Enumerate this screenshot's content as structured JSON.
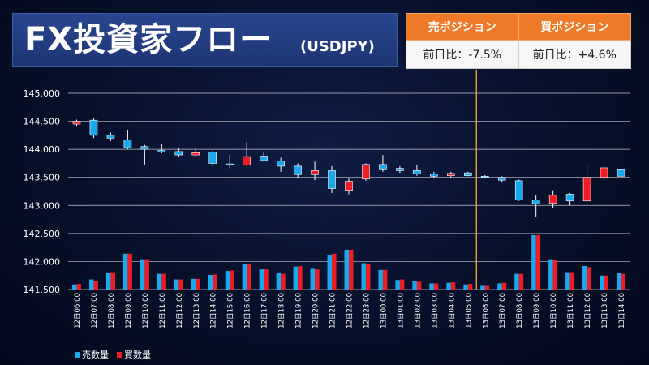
{
  "title": {
    "main": "FX投資家フロー",
    "sub": "(USDJPY)"
  },
  "positions": {
    "sell_header": "売ポジション",
    "buy_header": "買ポジション",
    "sell_change": "前日比：-7.5%",
    "buy_change": "前日比：+4.6%"
  },
  "colors": {
    "sell": "#1aa9ef",
    "buy": "#ee1c24",
    "grid": "#ffffff",
    "marker": "#e8a33c",
    "header": "#ef7b2a"
  },
  "chart_data": {
    "type": "candlestick+bar",
    "title": "",
    "xlabel": "",
    "ylabel": "",
    "ylim": [
      141.5,
      145.0
    ],
    "yticks": [
      "141.500",
      "142.000",
      "142.500",
      "143.000",
      "143.500",
      "144.000",
      "144.500",
      "145.000"
    ],
    "grid": true,
    "legend_position": "bottom-left",
    "legend": [
      "売数量",
      "買数量"
    ],
    "marker_after_category": "13日05:00",
    "categories": [
      "12日06:00",
      "12日07:00",
      "12日08:00",
      "12日09:00",
      "12日10:00",
      "12日11:00",
      "12日12:00",
      "12日13:00",
      "12日14:00",
      "12日15:00",
      "12日16:00",
      "12日17:00",
      "12日18:00",
      "12日19:00",
      "12日20:00",
      "12日21:00",
      "12日22:00",
      "12日23:00",
      "13日00:00",
      "13日01:00",
      "13日02:00",
      "13日03:00",
      "13日04:00",
      "13日05:00",
      "13日06:00",
      "13日07:00",
      "13日08:00",
      "13日09:00",
      "13日10:00",
      "13日11:00",
      "13日12:00",
      "13日13:00",
      "13日14:00"
    ],
    "candles": [
      {
        "o": 144.45,
        "h": 144.53,
        "l": 144.42,
        "c": 144.5
      },
      {
        "o": 144.52,
        "h": 144.55,
        "l": 144.2,
        "c": 144.25
      },
      {
        "o": 144.25,
        "h": 144.3,
        "l": 144.15,
        "c": 144.2
      },
      {
        "o": 144.17,
        "h": 144.35,
        "l": 144.0,
        "c": 144.03
      },
      {
        "o": 144.05,
        "h": 144.08,
        "l": 143.72,
        "c": 144.0
      },
      {
        "o": 143.98,
        "h": 144.1,
        "l": 143.93,
        "c": 143.95
      },
      {
        "o": 143.96,
        "h": 144.03,
        "l": 143.86,
        "c": 143.9
      },
      {
        "o": 143.9,
        "h": 144.02,
        "l": 143.87,
        "c": 143.94
      },
      {
        "o": 143.95,
        "h": 143.98,
        "l": 143.7,
        "c": 143.75
      },
      {
        "o": 143.74,
        "h": 143.9,
        "l": 143.66,
        "c": 143.72
      },
      {
        "o": 143.72,
        "h": 144.13,
        "l": 143.7,
        "c": 143.87
      },
      {
        "o": 143.88,
        "h": 143.94,
        "l": 143.78,
        "c": 143.8
      },
      {
        "o": 143.79,
        "h": 143.85,
        "l": 143.6,
        "c": 143.7
      },
      {
        "o": 143.7,
        "h": 143.75,
        "l": 143.48,
        "c": 143.55
      },
      {
        "o": 143.55,
        "h": 143.78,
        "l": 143.45,
        "c": 143.62
      },
      {
        "o": 143.62,
        "h": 143.7,
        "l": 143.22,
        "c": 143.3
      },
      {
        "o": 143.27,
        "h": 143.48,
        "l": 143.2,
        "c": 143.43
      },
      {
        "o": 143.47,
        "h": 143.75,
        "l": 143.44,
        "c": 143.73
      },
      {
        "o": 143.73,
        "h": 143.9,
        "l": 143.6,
        "c": 143.65
      },
      {
        "o": 143.66,
        "h": 143.7,
        "l": 143.58,
        "c": 143.62
      },
      {
        "o": 143.62,
        "h": 143.72,
        "l": 143.53,
        "c": 143.56
      },
      {
        "o": 143.56,
        "h": 143.6,
        "l": 143.49,
        "c": 143.52
      },
      {
        "o": 143.53,
        "h": 143.6,
        "l": 143.5,
        "c": 143.57
      },
      {
        "o": 143.58,
        "h": 143.6,
        "l": 143.52,
        "c": 143.53
      },
      {
        "o": 143.52,
        "h": 143.54,
        "l": 143.48,
        "c": 143.5
      },
      {
        "o": 143.5,
        "h": 143.52,
        "l": 143.42,
        "c": 143.45
      },
      {
        "o": 143.44,
        "h": 143.46,
        "l": 143.08,
        "c": 143.1
      },
      {
        "o": 143.1,
        "h": 143.18,
        "l": 142.8,
        "c": 143.03
      },
      {
        "o": 143.04,
        "h": 143.27,
        "l": 142.95,
        "c": 143.18
      },
      {
        "o": 143.2,
        "h": 143.22,
        "l": 143.0,
        "c": 143.08
      },
      {
        "o": 143.08,
        "h": 143.75,
        "l": 143.06,
        "c": 143.5
      },
      {
        "o": 143.5,
        "h": 143.75,
        "l": 143.45,
        "c": 143.67
      },
      {
        "o": 143.65,
        "h": 143.87,
        "l": 143.52,
        "c": 143.52
      }
    ],
    "series": [
      {
        "name": "売数量",
        "values": [
          141.59,
          141.68,
          141.79,
          142.14,
          142.04,
          141.78,
          141.68,
          141.69,
          141.76,
          141.83,
          141.95,
          141.86,
          141.79,
          141.91,
          141.87,
          142.12,
          142.21,
          141.97,
          141.85,
          141.67,
          141.65,
          141.61,
          141.62,
          141.59,
          141.58,
          141.61,
          141.78,
          142.47,
          142.04,
          141.81,
          141.92,
          141.75,
          141.79
        ]
      },
      {
        "name": "買数量",
        "values": [
          141.6,
          141.66,
          141.81,
          142.14,
          142.04,
          141.78,
          141.68,
          141.69,
          141.77,
          141.84,
          141.95,
          141.86,
          141.78,
          141.92,
          141.86,
          142.14,
          142.21,
          141.95,
          141.85,
          141.68,
          141.64,
          141.61,
          141.63,
          141.6,
          141.58,
          141.62,
          141.78,
          142.47,
          142.03,
          141.81,
          141.9,
          141.75,
          141.78
        ]
      }
    ]
  }
}
